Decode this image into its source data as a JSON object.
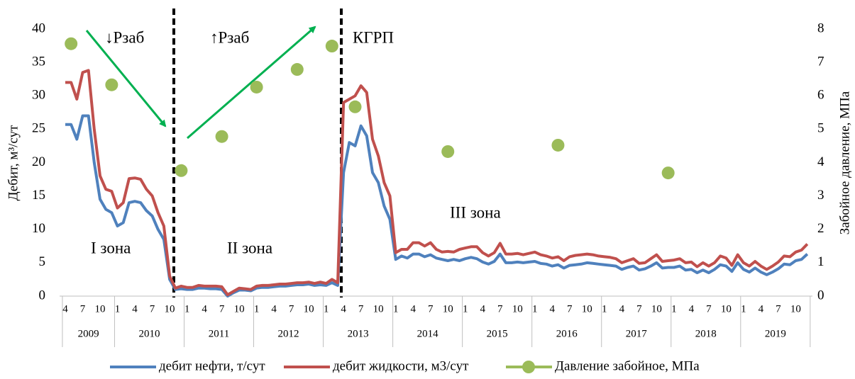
{
  "chart_data": {
    "type": "line",
    "y_label": "Дебит, м³/сут",
    "y2_label": "Забойное давление, МПа",
    "annotations": [
      "↓Pзаб",
      "↑Pзаб",
      "КГРП",
      "I зона",
      "II зона",
      "III зона"
    ],
    "categories": [
      "4",
      null,
      null,
      "7",
      null,
      null,
      "10",
      null,
      null,
      "1",
      null,
      null,
      "4",
      null,
      null,
      "7",
      null,
      null,
      "10",
      null,
      null,
      "1",
      null,
      null,
      "4",
      null,
      null,
      "7",
      null,
      null,
      "10",
      null,
      null,
      "1",
      null,
      null,
      "4",
      null,
      null,
      "7",
      null,
      null,
      "10",
      null,
      null,
      "1",
      null,
      null,
      "4",
      null,
      null,
      "7",
      null,
      null,
      "10",
      null,
      null,
      "1",
      null,
      null,
      "4",
      null,
      null,
      "7",
      null,
      null,
      "10",
      null,
      null,
      "1",
      null,
      null,
      "4",
      null,
      null,
      "7",
      null,
      null,
      "10",
      null,
      null,
      "1",
      null,
      null,
      "4",
      null,
      null,
      "7",
      null,
      null,
      "10",
      null,
      null,
      "1",
      null,
      null,
      "4",
      null,
      null,
      "7",
      null,
      null,
      "10",
      null,
      null,
      "1",
      null,
      null,
      "4",
      null,
      null,
      "7",
      null,
      null,
      "10",
      null,
      null,
      "1",
      null,
      null,
      "4",
      null,
      null,
      "7",
      null,
      null,
      "10",
      null,
      null
    ],
    "groups": [
      {
        "label": "2009",
        "count": 9
      },
      {
        "label": "2010",
        "count": 12
      },
      {
        "label": "2011",
        "count": 12
      },
      {
        "label": "2012",
        "count": 12
      },
      {
        "label": "2013",
        "count": 12
      },
      {
        "label": "2014",
        "count": 12
      },
      {
        "label": "2015",
        "count": 12
      },
      {
        "label": "2016",
        "count": 12
      },
      {
        "label": "2017",
        "count": 12
      },
      {
        "label": "2018",
        "count": 12
      },
      {
        "label": "2019",
        "count": 12
      }
    ],
    "ylim": [
      0,
      40
    ],
    "yticks": [
      0,
      5,
      10,
      15,
      20,
      25,
      30,
      35,
      40
    ],
    "y2lim": [
      0,
      8
    ],
    "y2ticks": [
      0,
      1,
      2,
      3,
      4,
      5,
      6,
      7,
      8
    ],
    "series": [
      {
        "name": "дебит нефти, т/сут",
        "color": "#4f81bd",
        "style": "line",
        "values": [
          25.7,
          25.7,
          23.5,
          27,
          27,
          20,
          14.5,
          13,
          12.5,
          10.5,
          11,
          14,
          14.2,
          14,
          12.8,
          12,
          10,
          8.5,
          2.5,
          1,
          1.1,
          1,
          1,
          1.2,
          1.2,
          1.1,
          1.1,
          1,
          0,
          0.5,
          0.9,
          0.9,
          0.8,
          1.2,
          1.3,
          1.3,
          1.4,
          1.5,
          1.5,
          1.6,
          1.7,
          1.7,
          1.8,
          1.6,
          1.7,
          1.6,
          2,
          1.6,
          18.5,
          23,
          22.5,
          25.5,
          24,
          18.5,
          17,
          13.5,
          11.5,
          5.5,
          6,
          5.7,
          6.3,
          6.3,
          5.9,
          6.2,
          5.7,
          5.5,
          5.3,
          5.5,
          5.3,
          5.6,
          5.8,
          5.6,
          5.1,
          4.8,
          5.2,
          6.3,
          5,
          5,
          5.1,
          5,
          5.1,
          5.2,
          4.9,
          4.8,
          4.5,
          4.7,
          4.2,
          4.6,
          4.7,
          4.8,
          5,
          4.9,
          4.8,
          4.7,
          4.6,
          4.5,
          4,
          4.3,
          4.5,
          3.9,
          4.1,
          4.5,
          5,
          4.2,
          4.3,
          4.3,
          4.5,
          3.9,
          4,
          3.5,
          3.9,
          3.5,
          4,
          4.7,
          4.5,
          3.7,
          5,
          4,
          3.6,
          4.2,
          3.6,
          3.2,
          3.6,
          4.1,
          4.8,
          4.7,
          5.3,
          5.5,
          6.3
        ]
      },
      {
        "name": "дебит жидкости, м3/сут",
        "color": "#c0504d",
        "style": "line",
        "values": [
          32,
          32,
          29.5,
          33.5,
          33.8,
          25,
          18,
          16,
          15.7,
          13.2,
          14,
          17.6,
          17.7,
          17.5,
          16,
          15,
          12.5,
          10.5,
          3,
          1.2,
          1.5,
          1.3,
          1.3,
          1.6,
          1.5,
          1.5,
          1.5,
          1.4,
          0.2,
          0.7,
          1.2,
          1.1,
          1,
          1.5,
          1.6,
          1.6,
          1.7,
          1.8,
          1.8,
          1.9,
          2,
          2,
          2.1,
          1.9,
          2.1,
          1.9,
          2.5,
          2,
          29,
          29.5,
          30,
          31.5,
          30.5,
          23.5,
          21,
          17,
          15,
          6.5,
          7,
          7,
          8,
          8,
          7.5,
          8,
          7,
          6.6,
          6.7,
          6.6,
          7,
          7.2,
          7.4,
          7.4,
          6.5,
          6,
          6.5,
          7.9,
          6.3,
          6.3,
          6.4,
          6.2,
          6.4,
          6.6,
          6.2,
          6,
          5.7,
          5.9,
          5.3,
          5.9,
          6.1,
          6.2,
          6.3,
          6.2,
          6,
          5.9,
          5.8,
          5.6,
          5,
          5.3,
          5.6,
          4.9,
          5,
          5.6,
          6.2,
          5.2,
          5.3,
          5.4,
          5.6,
          5,
          5.1,
          4.4,
          5,
          4.5,
          5,
          6,
          5.7,
          4.6,
          6.2,
          5,
          4.5,
          5.2,
          4.5,
          4,
          4.5,
          5.1,
          6,
          5.9,
          6.6,
          6.9,
          7.8
        ]
      },
      {
        "name": "Давление забойное, МПа",
        "color": "#9bbb59",
        "style": "markers",
        "axis": "y2",
        "values": [
          null,
          7.56,
          null,
          null,
          null,
          null,
          null,
          null,
          6.33,
          null,
          null,
          null,
          null,
          null,
          null,
          null,
          null,
          null,
          null,
          null,
          3.76,
          null,
          null,
          null,
          null,
          null,
          null,
          4.78,
          null,
          null,
          null,
          null,
          null,
          6.26,
          null,
          null,
          null,
          null,
          null,
          null,
          6.79,
          null,
          null,
          null,
          null,
          null,
          7.49,
          null,
          null,
          null,
          5.67,
          null,
          null,
          null,
          null,
          null,
          null,
          null,
          null,
          null,
          null,
          null,
          null,
          null,
          null,
          null,
          4.33,
          null,
          null,
          null,
          null,
          null,
          null,
          null,
          null,
          null,
          null,
          null,
          null,
          null,
          null,
          null,
          null,
          null,
          null,
          4.52,
          null,
          null,
          null,
          null,
          null,
          null,
          null,
          null,
          null,
          null,
          null,
          null,
          null,
          null,
          null,
          null,
          null,
          null,
          3.69,
          null,
          null,
          null,
          null,
          null,
          null,
          null,
          null,
          null,
          null,
          null,
          null,
          null,
          null,
          null,
          null,
          null,
          null,
          null,
          null,
          null,
          null,
          null,
          null
        ]
      }
    ]
  }
}
